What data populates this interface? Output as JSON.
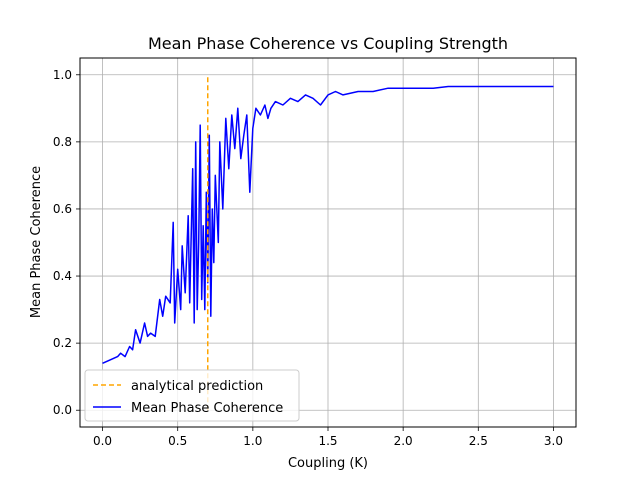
{
  "chart_data": {
    "type": "line",
    "title": "Mean Phase Coherence vs Coupling Strength",
    "xlabel": "Coupling (K)",
    "ylabel": "Mean Phase Coherence",
    "xlim": [
      -0.15,
      3.15
    ],
    "ylim": [
      -0.05,
      1.05
    ],
    "xticks": [
      "0.0",
      "0.5",
      "1.0",
      "1.5",
      "2.0",
      "2.5",
      "3.0"
    ],
    "yticks": [
      "0.0",
      "0.2",
      "0.4",
      "0.6",
      "0.8",
      "1.0"
    ],
    "grid": true,
    "legend_position": "lower-left",
    "series": [
      {
        "name": "analytical prediction",
        "style": "dashed",
        "color": "#ffa500",
        "x": [
          0.7,
          0.7
        ],
        "y": [
          0.0,
          1.0
        ]
      },
      {
        "name": "Mean Phase Coherence",
        "style": "solid",
        "color": "#0000ff",
        "x": [
          0.0,
          0.05,
          0.1,
          0.12,
          0.15,
          0.18,
          0.2,
          0.22,
          0.25,
          0.28,
          0.3,
          0.32,
          0.35,
          0.38,
          0.4,
          0.42,
          0.45,
          0.47,
          0.48,
          0.5,
          0.52,
          0.53,
          0.55,
          0.57,
          0.58,
          0.6,
          0.61,
          0.62,
          0.63,
          0.64,
          0.65,
          0.66,
          0.67,
          0.68,
          0.69,
          0.7,
          0.71,
          0.72,
          0.73,
          0.74,
          0.75,
          0.77,
          0.78,
          0.8,
          0.82,
          0.84,
          0.86,
          0.88,
          0.9,
          0.92,
          0.94,
          0.96,
          0.98,
          1.0,
          1.02,
          1.05,
          1.08,
          1.1,
          1.12,
          1.15,
          1.2,
          1.25,
          1.3,
          1.35,
          1.4,
          1.45,
          1.5,
          1.55,
          1.6,
          1.7,
          1.8,
          1.9,
          2.0,
          2.1,
          2.2,
          2.3,
          2.4,
          2.5,
          2.6,
          2.7,
          2.8,
          2.9,
          3.0
        ],
        "y": [
          0.14,
          0.15,
          0.16,
          0.17,
          0.16,
          0.19,
          0.18,
          0.24,
          0.2,
          0.26,
          0.22,
          0.23,
          0.22,
          0.33,
          0.28,
          0.34,
          0.32,
          0.56,
          0.26,
          0.42,
          0.3,
          0.49,
          0.35,
          0.58,
          0.32,
          0.72,
          0.26,
          0.8,
          0.3,
          0.5,
          0.85,
          0.33,
          0.55,
          0.3,
          0.65,
          0.38,
          0.82,
          0.28,
          0.6,
          0.44,
          0.7,
          0.5,
          0.8,
          0.6,
          0.87,
          0.72,
          0.88,
          0.78,
          0.9,
          0.75,
          0.82,
          0.88,
          0.65,
          0.84,
          0.9,
          0.88,
          0.91,
          0.87,
          0.9,
          0.92,
          0.91,
          0.93,
          0.92,
          0.94,
          0.93,
          0.91,
          0.94,
          0.95,
          0.94,
          0.95,
          0.95,
          0.96,
          0.96,
          0.96,
          0.96,
          0.965,
          0.965,
          0.965,
          0.965,
          0.965,
          0.965,
          0.965,
          0.965
        ]
      }
    ]
  }
}
